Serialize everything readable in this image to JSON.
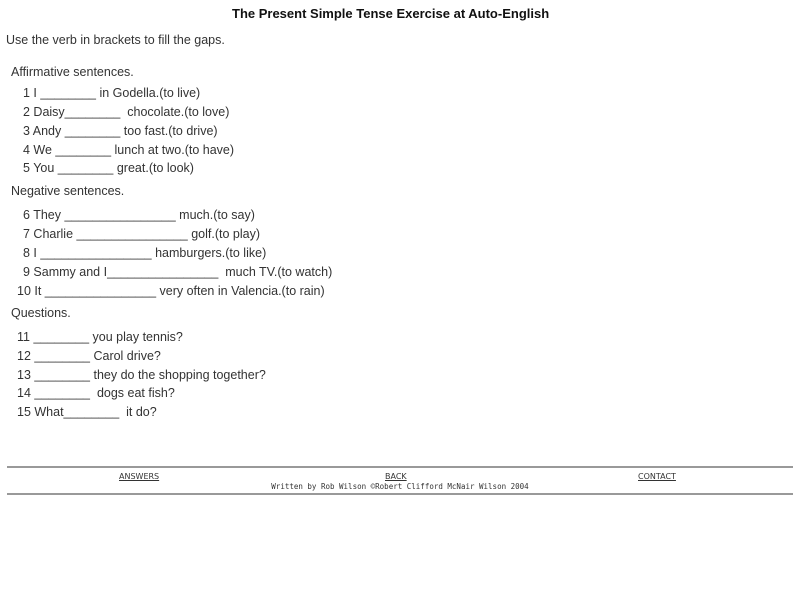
{
  "title": "The Present Simple Tense Exercise at Auto-English",
  "instruction": "Use the verb in brackets to fill the gaps.",
  "sections": [
    {
      "heading": "Affirmative sentences.",
      "items": [
        "1 I ________ in Godella.(to live)",
        "2 Daisy________  chocolate.(to love)",
        "3 Andy ________ too fast.(to drive)",
        "4 We ________ lunch at two.(to have)",
        "5 You ________ great.(to look)"
      ]
    },
    {
      "heading": "Negative sentences.",
      "items": [
        "6 They ________________ much.(to say)",
        "7 Charlie ________________ golf.(to play)",
        "8 I ________________ hamburgers.(to like)",
        "9 Sammy and I________________  much TV.(to watch)",
        "10 It ________________ very often in Valencia.(to rain)"
      ]
    },
    {
      "heading": "Questions.",
      "items": [
        "11 ________ you play tennis?",
        "12 ________ Carol drive?",
        "13 ________ they do the shopping together?",
        "14 ________  dogs eat fish?",
        "15 What________  it do?"
      ]
    }
  ],
  "footer": {
    "answers": "ANSWERS",
    "back": "BACK",
    "contact": "CONTACT",
    "credit": "Written by Rob Wilson ©Robert Clifford McNair Wilson 2004"
  }
}
